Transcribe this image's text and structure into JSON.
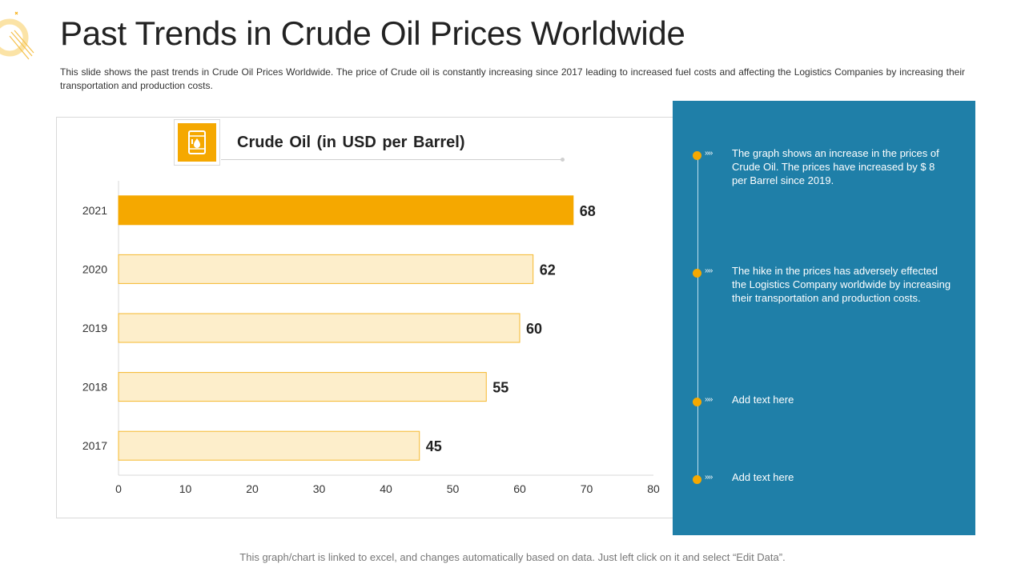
{
  "slide": {
    "title": "Past Trends in Crude Oil Prices Worldwide",
    "description": "This slide shows the past trends in Crude Oil Prices Worldwide. The price of Crude oil is constantly increasing since 2017 leading to increased fuel costs and affecting the Logistics Companies by increasing their transportation and production costs.",
    "footer": "This graph/chart is linked to excel, and changes automatically based on data. Just left click on it and select “Edit Data”."
  },
  "chart_data": {
    "type": "bar",
    "orientation": "horizontal",
    "title": "Crude Oil (in USD per Barrel)",
    "categories": [
      "2021",
      "2020",
      "2019",
      "2018",
      "2017"
    ],
    "values": [
      68,
      62,
      60,
      55,
      45
    ],
    "data_labels": [
      "68",
      "62",
      "60",
      "55",
      "45"
    ],
    "xlim": [
      0,
      80
    ],
    "x_ticks": [
      0,
      10,
      20,
      30,
      40,
      50,
      60,
      70,
      80
    ],
    "x_tick_labels": [
      "0",
      "10",
      "20",
      "30",
      "40",
      "50",
      "60",
      "70",
      "80"
    ],
    "grid": false,
    "legend": "none",
    "highlight_category": "2021",
    "colors": {
      "highlight": "#f5a800",
      "bar_fill": "#fdeecb",
      "bar_stroke": "#f5b82e"
    }
  },
  "side_panel": {
    "background": "#1f7fa8",
    "arrows": "››››",
    "items": [
      {
        "text": "The graph shows an increase in the prices of Crude Oil. The prices have increased by $ 8 per Barrel since 2019."
      },
      {
        "text": "The hike in the prices has adversely effected the Logistics Company worldwide by increasing their transportation and production costs."
      },
      {
        "text": "Add text here"
      },
      {
        "text": "Add text here"
      }
    ]
  },
  "icons": {
    "logo": "ring-logo-icon",
    "chart": "oil-barrel-icon"
  },
  "accent_color": "#f5a800"
}
